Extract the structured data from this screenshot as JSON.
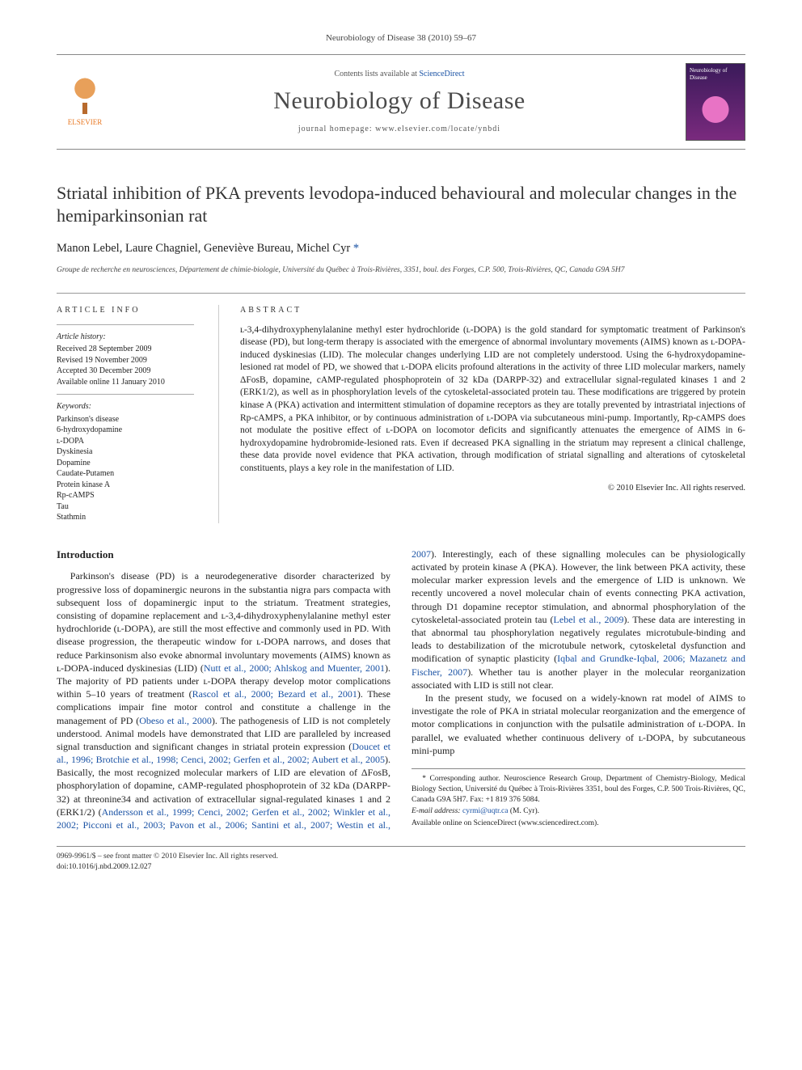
{
  "runningHead": "Neurobiology of Disease 38 (2010) 59–67",
  "masthead": {
    "contentsLine_pre": "Contents lists available at ",
    "contentsLine_link": "ScienceDirect",
    "journalName": "Neurobiology of Disease",
    "homepageLabel": "journal homepage: www.elsevier.com/locate/ynbdi",
    "publisherName": "ELSEVIER",
    "coverText": "Neurobiology of Disease"
  },
  "title": "Striatal inhibition of PKA prevents levodopa-induced behavioural and molecular changes in the hemiparkinsonian rat",
  "authors": "Manon Lebel, Laure Chagniel, Geneviève Bureau, Michel Cyr",
  "corrMark": "*",
  "affiliation": "Groupe de recherche en neurosciences, Département de chimie-biologie, Université du Québec à Trois-Rivières, 3351, boul. des Forges, C.P. 500, Trois-Rivières, QC, Canada G9A 5H7",
  "articleInfo": {
    "heading": "article info",
    "historyLabel": "Article history:",
    "received": "Received 28 September 2009",
    "revised": "Revised 19 November 2009",
    "accepted": "Accepted 30 December 2009",
    "online": "Available online 11 January 2010",
    "keywordsLabel": "Keywords:",
    "keywords": [
      "Parkinson's disease",
      "6-hydroxydopamine",
      "ʟ-DOPA",
      "Dyskinesia",
      "Dopamine",
      "Caudate-Putamen",
      "Protein kinase A",
      "Rp-cAMPS",
      "Tau",
      "Stathmin"
    ]
  },
  "abstract": {
    "heading": "abstract",
    "text": "ʟ-3,4-dihydroxyphenylalanine methyl ester hydrochloride (ʟ-DOPA) is the gold standard for symptomatic treatment of Parkinson's disease (PD), but long-term therapy is associated with the emergence of abnormal involuntary movements (AIMS) known as ʟ-DOPA-induced dyskinesias (LID). The molecular changes underlying LID are not completely understood. Using the 6-hydroxydopamine-lesioned rat model of PD, we showed that ʟ-DOPA elicits profound alterations in the activity of three LID molecular markers, namely ΔFosB, dopamine, cAMP-regulated phosphoprotein of 32 kDa (DARPP-32) and extracellular signal-regulated kinases 1 and 2 (ERK1/2), as well as in phosphorylation levels of the cytoskeletal-associated protein tau. These modifications are triggered by protein kinase A (PKA) activation and intermittent stimulation of dopamine receptors as they are totally prevented by intrastriatal injections of Rp-cAMPS, a PKA inhibitor, or by continuous administration of ʟ-DOPA via subcutaneous mini-pump. Importantly, Rp-cAMPS does not modulate the positive effect of ʟ-DOPA on locomotor deficits and significantly attenuates the emergence of AIMS in 6-hydroxydopamine hydrobromide-lesioned rats. Even if decreased PKA signalling in the striatum may represent a clinical challenge, these data provide novel evidence that PKA activation, through modification of striatal signalling and alterations of cytoskeletal constituents, plays a key role in the manifestation of LID.",
    "copyright": "© 2010 Elsevier Inc. All rights reserved."
  },
  "introHeading": "Introduction",
  "intro_p1_a": "Parkinson's disease (PD) is a neurodegenerative disorder characterized by progressive loss of dopaminergic neurons in the substantia nigra pars compacta with subsequent loss of dopaminergic input to the striatum. Treatment strategies, consisting of dopamine replacement and ʟ-3,4-dihydroxyphenylalanine methyl ester hydrochloride (ʟ-DOPA), are still the most effective and commonly used in PD. With disease progression, the therapeutic window for ʟ-DOPA narrows, and doses that reduce Parkinsonism also evoke abnormal involuntary movements (AIMS) known as ʟ-DOPA-induced dyskinesias (LID) (",
  "intro_p1_cite1": "Nutt et al., 2000; Ahlskog and Muenter, 2001",
  "intro_p1_b": "). The majority of PD patients under ʟ-DOPA therapy develop motor complications within 5–10 years of treatment (",
  "intro_p1_cite2": "Rascol et al., 2000; Bezard et al., 2001",
  "intro_p1_c": "). These complications impair fine motor control and constitute a challenge in the management of PD (",
  "intro_p1_cite3": "Obeso et al., 2000",
  "intro_p1_d": "). The pathogenesis of LID is not completely understood. Animal models have demonstrated that LID are paralleled by increased signal transduction and significant changes in striatal protein expression (",
  "intro_p1_cite4": "Doucet et al., 1996; Brotchie et ",
  "intro_p2_cite1": "al., 1998; Cenci, 2002; Gerfen et al., 2002; Aubert et al., 2005",
  "intro_p2_a": "). Basically, the most recognized molecular markers of LID are elevation of ΔFosB, phosphorylation of dopamine, cAMP-regulated phosphoprotein of 32 kDa (DARPP-32) at threonine34 and activation of extracellular signal-regulated kinases 1 and 2 (ERK1/2) (",
  "intro_p2_cite2": "Andersson et al., 1999; Cenci, 2002; Gerfen et al., 2002; Winkler et al., 2002; Picconi et al., 2003; Pavon et al., 2006; Santini et al., 2007; Westin et al., 2007",
  "intro_p2_b": "). Interestingly, each of these signalling molecules can be physiologically activated by protein kinase A (PKA). However, the link between PKA activity, these molecular marker expression levels and the emergence of LID is unknown. We recently uncovered a novel molecular chain of events connecting PKA activation, through D1 dopamine receptor stimulation, and abnormal phosphorylation of the cytoskeletal-associated protein tau (",
  "intro_p2_cite3": "Lebel et al., 2009",
  "intro_p2_c": "). These data are interesting in that abnormal tau phosphorylation negatively regulates microtubule-binding and leads to destabilization of the microtubule network, cytoskeletal dysfunction and modification of synaptic plasticity (",
  "intro_p2_cite4": "Iqbal and Grundke-Iqbal, 2006; Mazanetz and Fischer, 2007",
  "intro_p2_d": "). Whether tau is another player in the molecular reorganization associated with LID is still not clear.",
  "intro_p3": "In the present study, we focused on a widely-known rat model of AIMS to investigate the role of PKA in striatal molecular reorganization and the emergence of motor complications in conjunction with the pulsatile administration of ʟ-DOPA. In parallel, we evaluated whether continuous delivery of ʟ-DOPA, by subcutaneous mini-pump",
  "footnotes": {
    "corr": "* Corresponding author. Neuroscience Research Group, Department of Chemistry-Biology, Medical Biology Section, Université du Québec à Trois-Rivières 3351, boul des Forges, C.P. 500 Trois-Rivières, QC, Canada G9A 5H7. Fax: +1 819 376 5084.",
    "emailLabel": "E-mail address: ",
    "email": "cyrmi@uqtr.ca",
    "emailSuffix": " (M. Cyr).",
    "online": "Available online on ScienceDirect (www.sciencedirect.com)."
  },
  "footer": {
    "issn": "0969-9961/$ – see front matter © 2010 Elsevier Inc. All rights reserved.",
    "doi": "doi:10.1016/j.nbd.2009.12.027"
  },
  "colors": {
    "link": "#1a52a4",
    "publisher": "#e87722",
    "rule": "#888888",
    "text": "#222222"
  },
  "typography": {
    "bodyFont": "Times New Roman",
    "titleSizePt": 22,
    "journalNameSizePt": 30,
    "bodySizePt": 12,
    "abstractSizePt": 11.5,
    "infoSizePt": 10
  }
}
